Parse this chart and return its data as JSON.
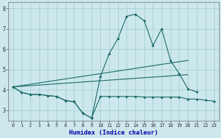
{
  "xlabel": "Humidex (Indice chaleur)",
  "bg_color": "#cce8ec",
  "grid_color": "#9ac8cc",
  "line_color": "#1e6b6b",
  "xlim": [
    -0.5,
    23.5
  ],
  "ylim": [
    2.5,
    8.3
  ],
  "yticks": [
    3,
    4,
    5,
    6,
    7,
    8
  ],
  "xticks": [
    0,
    1,
    2,
    3,
    4,
    5,
    6,
    7,
    8,
    9,
    10,
    11,
    12,
    13,
    14,
    15,
    16,
    17,
    18,
    19,
    20,
    21,
    22,
    23
  ],
  "series_low": {
    "x": [
      0,
      1,
      2,
      3,
      4,
      5,
      6,
      7,
      8,
      9,
      10,
      11,
      12,
      13,
      14,
      15,
      16,
      17,
      18,
      19,
      20,
      21,
      22,
      23
    ],
    "y": [
      4.15,
      3.88,
      3.78,
      3.78,
      3.72,
      3.68,
      3.48,
      3.42,
      2.85,
      2.62,
      3.68,
      3.68,
      3.68,
      3.68,
      3.68,
      3.65,
      3.65,
      3.65,
      3.65,
      3.65,
      3.55,
      3.55,
      3.5,
      3.45
    ]
  },
  "series_high": {
    "x": [
      0,
      1,
      2,
      3,
      4,
      5,
      6,
      7,
      8,
      9,
      10,
      11,
      12,
      13,
      14,
      15,
      16,
      17,
      18,
      19,
      20,
      21
    ],
    "y": [
      4.15,
      3.88,
      3.78,
      3.78,
      3.72,
      3.68,
      3.48,
      3.42,
      2.85,
      2.62,
      4.65,
      5.78,
      6.52,
      7.62,
      7.72,
      7.4,
      6.18,
      7.0,
      5.45,
      4.8,
      4.05,
      3.9
    ]
  },
  "line1": {
    "x": [
      0,
      20
    ],
    "y": [
      4.15,
      5.45
    ]
  },
  "line2": {
    "x": [
      0,
      20
    ],
    "y": [
      4.15,
      4.75
    ]
  }
}
